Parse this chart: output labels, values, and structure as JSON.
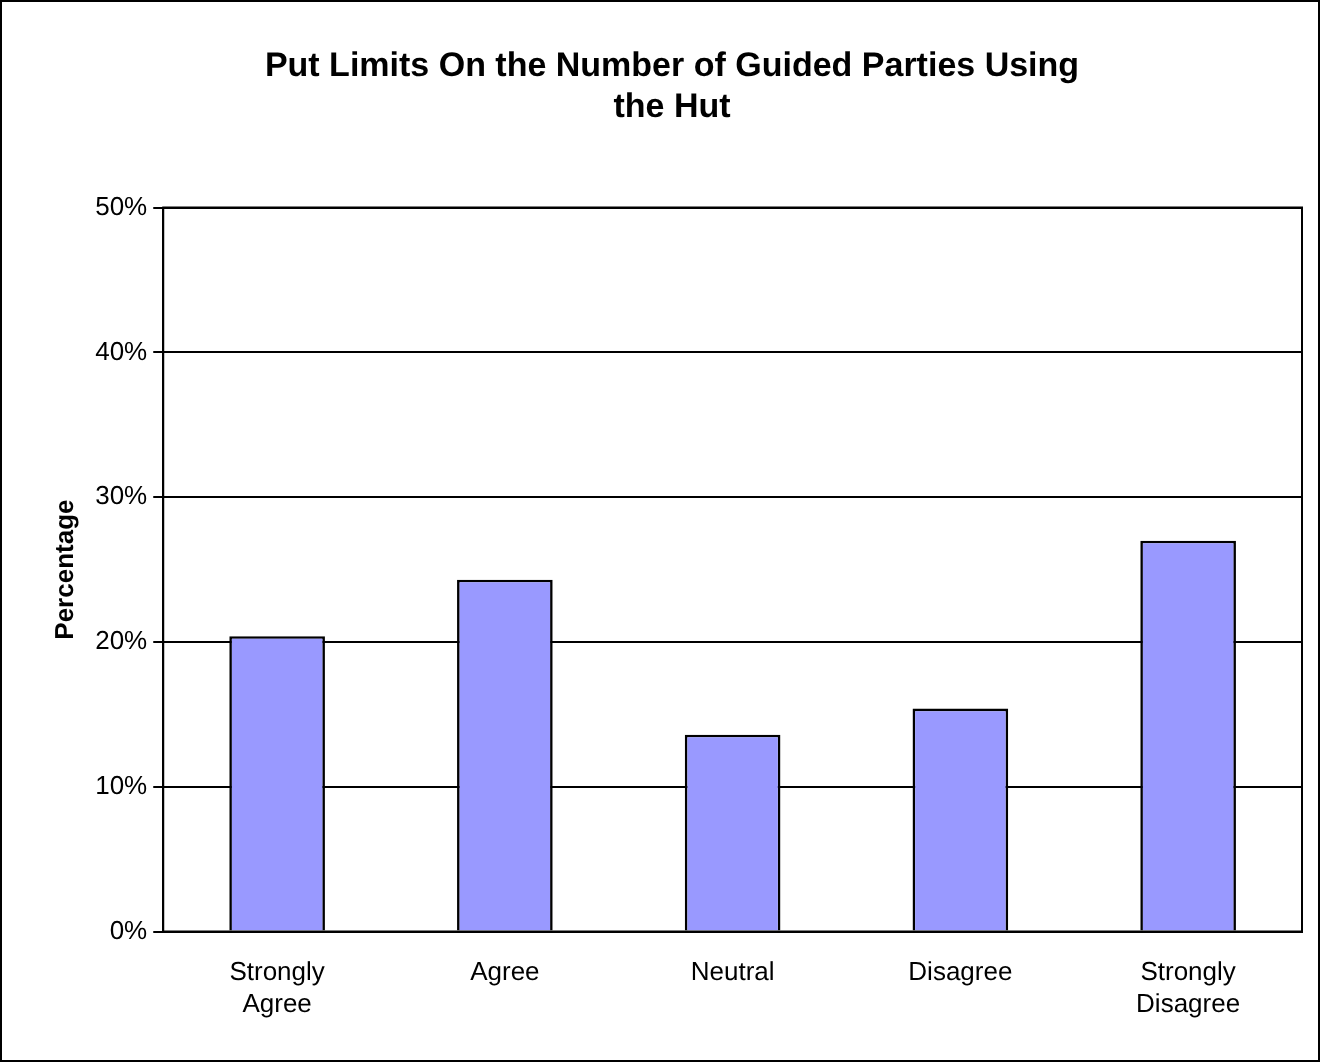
{
  "chart_data": {
    "type": "bar",
    "title": "Put Limits On the Number of Guided Parties Using the Hut",
    "ylabel": "Percentage",
    "categories": [
      "Strongly Agree",
      "Agree",
      "Neutral",
      "Disagree",
      "Strongly Disagree"
    ],
    "values": [
      20.4,
      24.3,
      13.6,
      15.4,
      27.0
    ],
    "color": "#9999ff",
    "ylim": [
      0,
      50
    ],
    "yticks": [
      {
        "value": 0,
        "label": "0%"
      },
      {
        "value": 10,
        "label": "10%"
      },
      {
        "value": 20,
        "label": "20%"
      },
      {
        "value": 30,
        "label": "30%"
      },
      {
        "value": 40,
        "label": "40%"
      },
      {
        "value": 50,
        "label": "50%"
      }
    ],
    "grid": "y",
    "legend": false
  }
}
